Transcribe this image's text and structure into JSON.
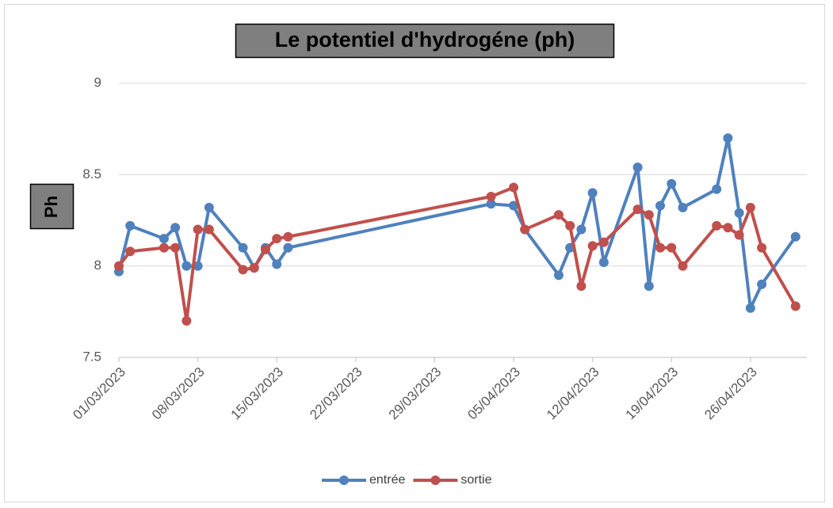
{
  "chart_data": {
    "type": "line",
    "title": "Le potentiel d'hydrogéne (ph)",
    "y_label": "Ph",
    "x": [
      "2023-03-01",
      "2023-03-02",
      "2023-03-05",
      "2023-03-06",
      "2023-03-07",
      "2023-03-08",
      "2023-03-09",
      "2023-03-12",
      "2023-03-13",
      "2023-03-14",
      "2023-03-15",
      "2023-03-16",
      "2023-04-03",
      "2023-04-05",
      "2023-04-06",
      "2023-04-09",
      "2023-04-10",
      "2023-04-11",
      "2023-04-12",
      "2023-04-13",
      "2023-04-16",
      "2023-04-17",
      "2023-04-18",
      "2023-04-19",
      "2023-04-20",
      "2023-04-23",
      "2023-04-24",
      "2023-04-25",
      "2023-04-26",
      "2023-04-27",
      "2023-04-30"
    ],
    "series": [
      {
        "name": "entrée",
        "color": "#4f81bd",
        "values": [
          7.97,
          8.22,
          8.15,
          8.21,
          8.0,
          8.0,
          8.32,
          8.1,
          7.99,
          8.1,
          8.01,
          8.1,
          8.34,
          8.33,
          8.2,
          7.95,
          8.1,
          8.2,
          8.4,
          8.02,
          8.54,
          7.89,
          8.33,
          8.45,
          8.32,
          8.42,
          8.7,
          8.29,
          7.77,
          7.9,
          8.16
        ]
      },
      {
        "name": "sortie",
        "color": "#c0504d",
        "values": [
          8.0,
          8.08,
          8.1,
          8.1,
          7.7,
          8.2,
          8.2,
          7.98,
          7.99,
          8.09,
          8.15,
          8.16,
          8.38,
          8.43,
          8.2,
          8.28,
          8.22,
          7.89,
          8.11,
          8.13,
          8.31,
          8.28,
          8.1,
          8.1,
          8.0,
          8.22,
          8.21,
          8.17,
          8.32,
          8.1,
          7.78
        ]
      }
    ],
    "xlim": [
      "2023-03-01",
      "2023-05-01"
    ],
    "xticks": [
      {
        "value": "2023-03-01",
        "label": "01/03/2023"
      },
      {
        "value": "2023-03-08",
        "label": "08/03/2023"
      },
      {
        "value": "2023-03-15",
        "label": "15/03/2023"
      },
      {
        "value": "2023-03-22",
        "label": "22/03/2023"
      },
      {
        "value": "2023-03-29",
        "label": "29/03/2023"
      },
      {
        "value": "2023-04-05",
        "label": "05/04/2023"
      },
      {
        "value": "2023-04-12",
        "label": "12/04/2023"
      },
      {
        "value": "2023-04-19",
        "label": "19/04/2023"
      },
      {
        "value": "2023-04-26",
        "label": "26/04/2023"
      }
    ],
    "ylim": [
      7.5,
      9
    ],
    "yticks": [
      7.5,
      8,
      8.5,
      9
    ],
    "grid": true,
    "legend": "bottom"
  }
}
